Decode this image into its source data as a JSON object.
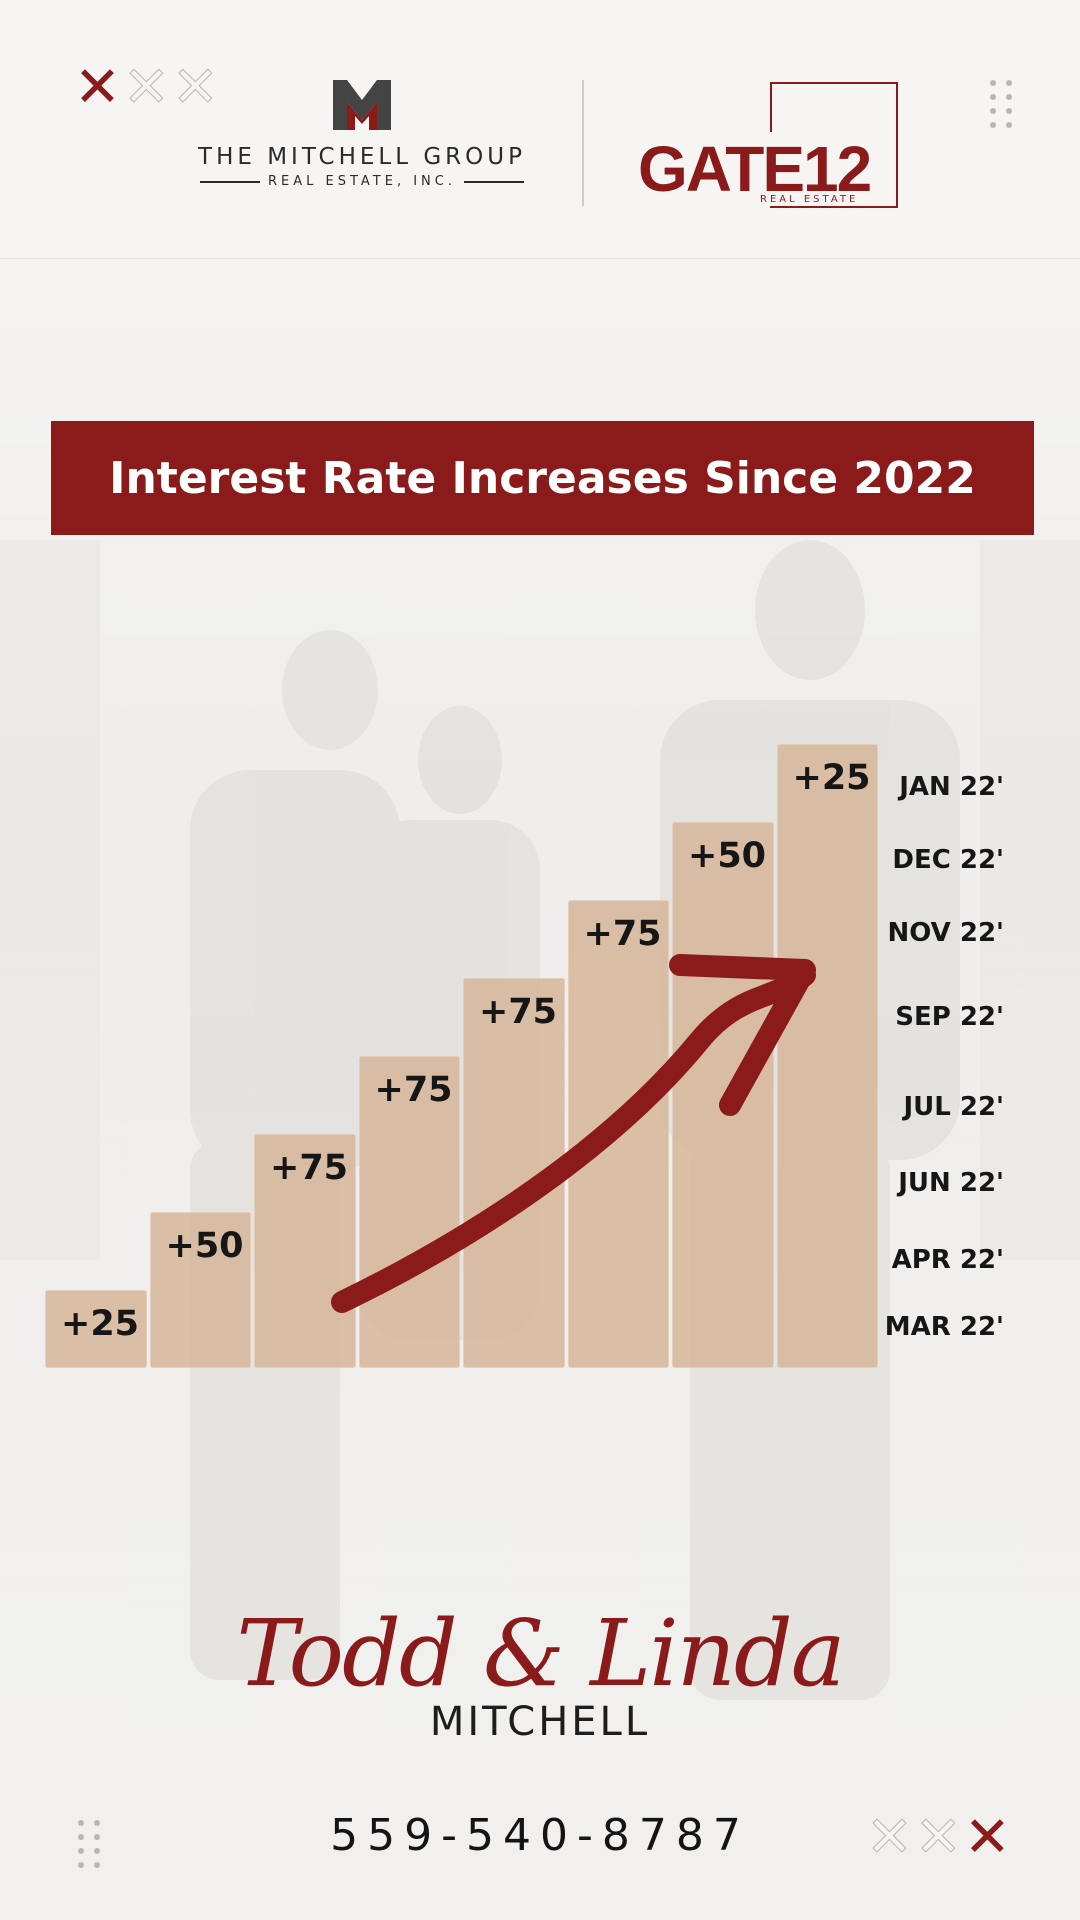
{
  "header": {
    "brand_left_name": "THE MITCHELL GROUP",
    "brand_left_sub": "REAL ESTATE, INC.",
    "brand_right_name": "GATE12",
    "brand_right_sub": "REAL ESTATE"
  },
  "colors": {
    "accent": "#8b1a1a",
    "block": "#d7b69a",
    "text_dark": "#161616"
  },
  "icons": {
    "decor_top_left": "x-marks-icon",
    "decor_bottom_right": "x-marks-icon",
    "decor_top_right": "dot-grid-icon",
    "decor_bottom_left": "dot-grid-icon"
  },
  "chart_data": {
    "type": "bar",
    "title": "Interest Rate Increases Since 2022",
    "categories": [
      "MAR 22'",
      "APR 22'",
      "JUN 22'",
      "JUL 22'",
      "SEP 22'",
      "NOV 22'",
      "DEC 22'",
      "JAN 22'"
    ],
    "values": [
      25,
      50,
      75,
      75,
      75,
      75,
      50,
      25
    ],
    "value_labels": [
      "+25",
      "+50",
      "+75",
      "+75",
      "+75",
      "+75",
      "+50",
      "+25"
    ],
    "cumulative": [
      25,
      75,
      150,
      225,
      300,
      375,
      425,
      450
    ],
    "arrow": "increasing trend arrow"
  },
  "footer": {
    "name_script": "Todd & Linda",
    "surname": "MITCHELL",
    "phone": "559-540-8787"
  }
}
